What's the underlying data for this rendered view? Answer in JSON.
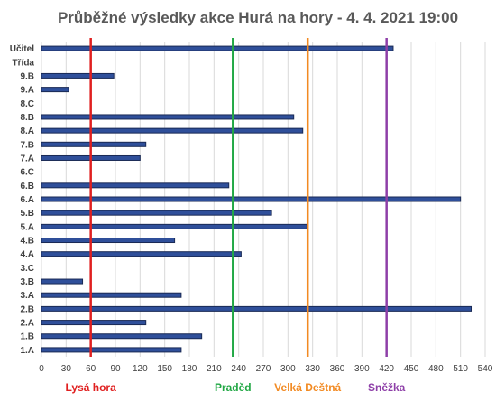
{
  "chart_data": {
    "type": "bar",
    "orientation": "horizontal",
    "title": "Průběžné výsledky akce Hurá na hory - 4. 4. 2021 19:00",
    "categories": [
      "Učitel",
      "Třída",
      "9.B",
      "9.A",
      "8.C",
      "8.B",
      "8.A",
      "7.B",
      "7.A",
      "6.C",
      "6.B",
      "6.A",
      "5.B",
      "5.A",
      "4.B",
      "4.A",
      "3.C",
      "3.B",
      "3.A",
      "2.B",
      "2.A",
      "1.B",
      "1.A"
    ],
    "values": [
      428,
      null,
      88,
      33,
      null,
      307,
      318,
      127,
      120,
      null,
      228,
      510,
      280,
      323,
      162,
      243,
      null,
      50,
      170,
      523,
      127,
      195,
      170
    ],
    "xlim": [
      0,
      540
    ],
    "xticks": [
      0,
      30,
      60,
      90,
      120,
      150,
      180,
      210,
      240,
      270,
      300,
      330,
      360,
      390,
      420,
      450,
      480,
      510,
      540
    ],
    "grid": true,
    "markers": [
      {
        "label": "Lysá hora",
        "value": 60,
        "color": "#e02020"
      },
      {
        "label": "Praděd",
        "value": 233,
        "color": "#22a845"
      },
      {
        "label": "Velká Deštná",
        "value": 324,
        "color": "#f28a22"
      },
      {
        "label": "Sněžka",
        "value": 420,
        "color": "#8e3fa8"
      }
    ],
    "bar_color": "#2f4f9a"
  }
}
